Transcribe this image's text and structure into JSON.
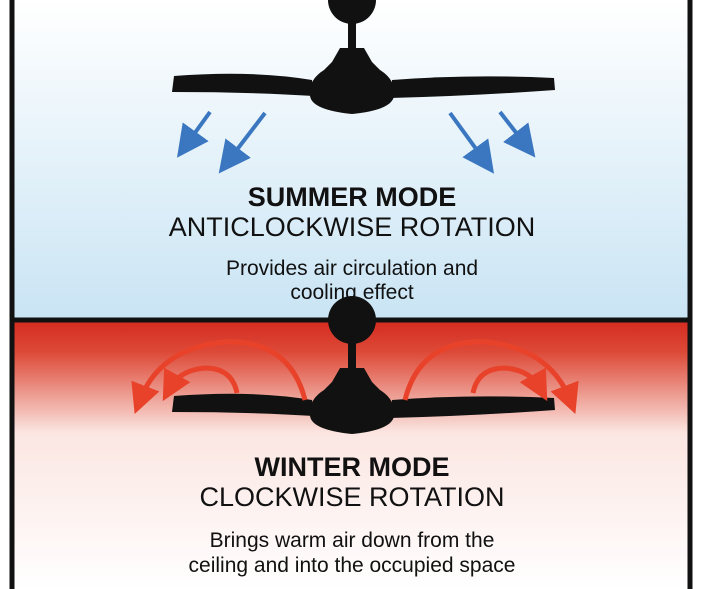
{
  "summer": {
    "title": "SUMMER MODE",
    "subtitle": "ANTICLOCKWISE ROTATION",
    "description": [
      "Provides air circulation and",
      "cooling effect"
    ]
  },
  "winter": {
    "title": "WINTER MODE",
    "subtitle": "CLOCKWISE ROTATION",
    "description": [
      "Brings warm air down from the",
      "ceiling and into the occupied space"
    ]
  }
}
